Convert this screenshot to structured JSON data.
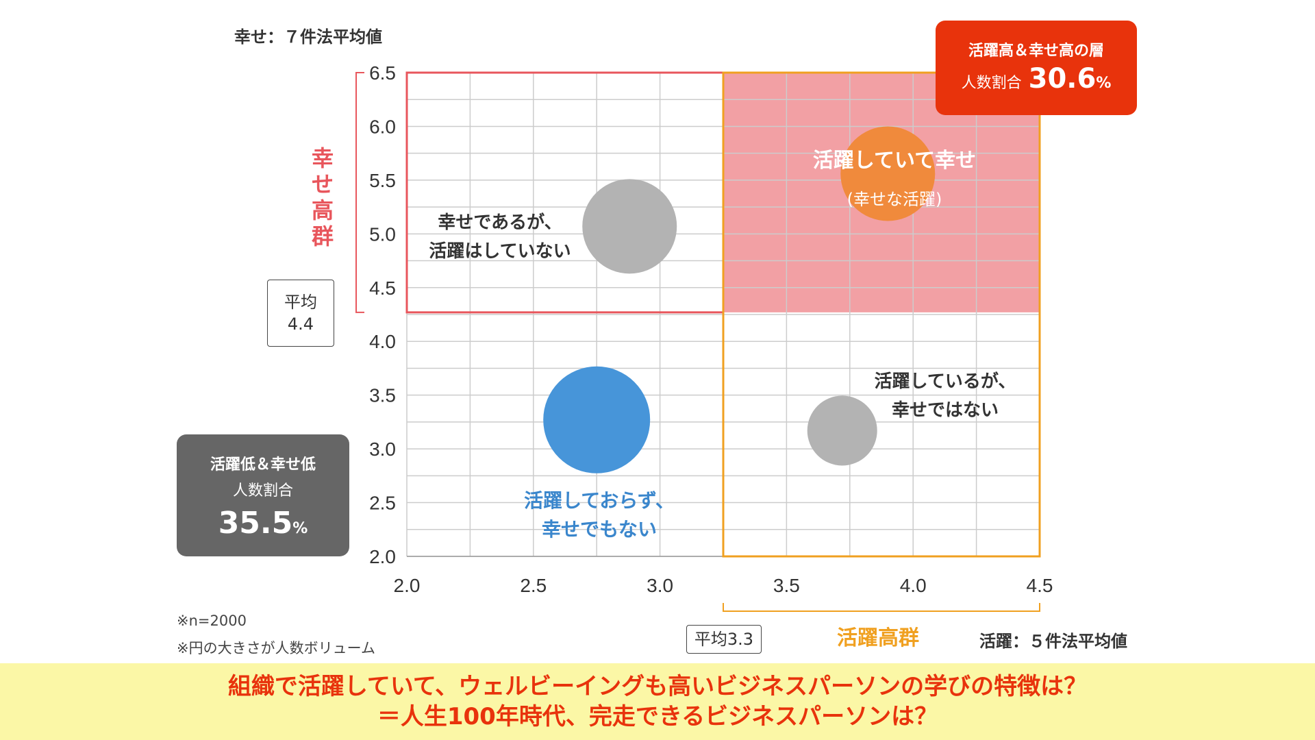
{
  "chart_data": {
    "type": "scatter",
    "title": "",
    "xlabel": "活躍：５件法平均値",
    "ylabel": "幸せ：７件法平均値",
    "xlim": [
      2.0,
      4.5
    ],
    "ylim": [
      2.0,
      6.5
    ],
    "x_ticks": [
      "2.0",
      "2.5",
      "3.0",
      "3.5",
      "4.0",
      "4.5"
    ],
    "y_ticks": [
      "6.5",
      "6.0",
      "5.5",
      "5.0",
      "4.5",
      "4.0",
      "3.5",
      "3.0",
      "2.5",
      "2.0"
    ],
    "grid": true,
    "averages": {
      "x": 3.3,
      "y": 4.4
    },
    "points": [
      {
        "x": 2.88,
        "y": 5.07,
        "size": "medium",
        "color": "#b3b3b3"
      },
      {
        "x": 3.9,
        "y": 5.56,
        "size": "medium",
        "color": "#f08a3c"
      },
      {
        "x": 2.75,
        "y": 3.27,
        "size": "large",
        "color": "#4795d9"
      },
      {
        "x": 3.72,
        "y": 3.17,
        "size": "small",
        "color": "#b3b3b3"
      }
    ]
  },
  "axis": {
    "y_title": "幸せ：７件法平均値",
    "x_title": "活躍：５件法平均値",
    "y_band": "幸せ高群",
    "x_band": "活躍高群",
    "y_avg_label": "平均",
    "y_avg_value": "4.4",
    "x_avg": "平均3.3"
  },
  "quadrants": {
    "top_left": [
      "幸せであるが、",
      "活躍はしていない"
    ],
    "top_right_main": "活躍していて幸せ",
    "top_right_sub": "(幸せな活躍)",
    "bottom_right": [
      "活躍しているが、",
      "幸せではない"
    ],
    "bottom_left": [
      "活躍しておらず、",
      "幸せでもない"
    ]
  },
  "stats": {
    "high": {
      "title": "活躍高＆幸せ高の層",
      "label": "人数割合",
      "value": "30.6",
      "unit": "%"
    },
    "low": {
      "title": "活躍低＆幸せ低",
      "label": "人数割合",
      "value": "35.5",
      "unit": "%"
    }
  },
  "notes": [
    "※n=2000",
    "※円の大きさが人数ボリューム"
  ],
  "banner": [
    "組織で活躍していて、ウェルビーイングも高いビジネスパーソンの学びの特徴は？",
    "＝人生100年時代、完走できるビジネスパーソンは？"
  ],
  "colors": {
    "happy_band": "#e8565c",
    "active_band": "#f0a020",
    "highlight_fill": "#f2a0a4",
    "stat_high_bg": "#e8330c",
    "stat_low_bg": "#666666",
    "banner_bg": "#fbf7a6",
    "banner_text": "#e8330c"
  }
}
